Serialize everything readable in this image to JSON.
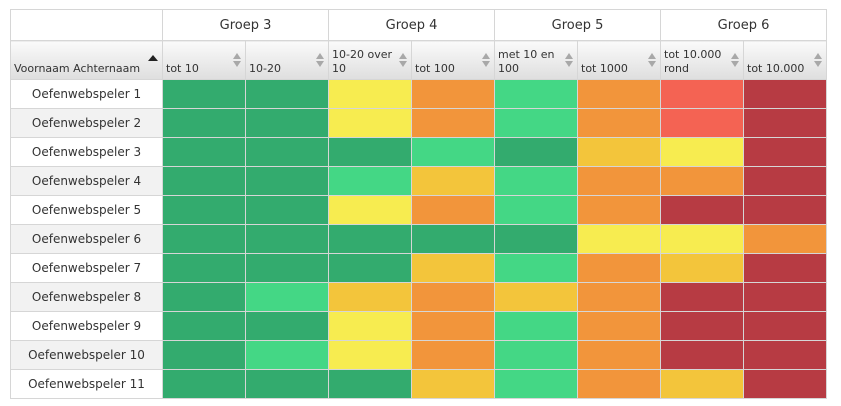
{
  "name_header": "Voornaam Achternaam",
  "groups": [
    "Groep 3",
    "Groep 4",
    "Groep 5",
    "Groep 6"
  ],
  "columns": [
    "tot 10",
    "10-20",
    "10-20 over 10",
    "tot 100",
    "met 10 en 100",
    "tot 1000",
    "tot 10.000 rond",
    "tot 10.000"
  ],
  "levels": {
    "G": "#33ab6e",
    "L": "#44d785",
    "Y": "#f7ec50",
    "A": "#f3c53b",
    "O": "#f2953b",
    "S": "#f46353",
    "R": "#b73b43"
  },
  "players": [
    {
      "name": "Oefenwebspeler 1",
      "cells": [
        "G",
        "G",
        "Y",
        "O",
        "L",
        "O",
        "S",
        "R"
      ]
    },
    {
      "name": "Oefenwebspeler 2",
      "cells": [
        "G",
        "G",
        "Y",
        "O",
        "L",
        "O",
        "S",
        "R"
      ]
    },
    {
      "name": "Oefenwebspeler 3",
      "cells": [
        "G",
        "G",
        "G",
        "L",
        "G",
        "A",
        "Y",
        "R"
      ]
    },
    {
      "name": "Oefenwebspeler 4",
      "cells": [
        "G",
        "G",
        "L",
        "A",
        "L",
        "O",
        "O",
        "R"
      ]
    },
    {
      "name": "Oefenwebspeler 5",
      "cells": [
        "G",
        "G",
        "Y",
        "O",
        "L",
        "O",
        "R",
        "R"
      ]
    },
    {
      "name": "Oefenwebspeler 6",
      "cells": [
        "G",
        "G",
        "G",
        "G",
        "G",
        "Y",
        "Y",
        "O"
      ]
    },
    {
      "name": "Oefenwebspeler 7",
      "cells": [
        "G",
        "G",
        "G",
        "A",
        "L",
        "O",
        "A",
        "R"
      ]
    },
    {
      "name": "Oefenwebspeler 8",
      "cells": [
        "G",
        "L",
        "A",
        "O",
        "A",
        "O",
        "R",
        "R"
      ]
    },
    {
      "name": "Oefenwebspeler 9",
      "cells": [
        "G",
        "G",
        "Y",
        "O",
        "L",
        "O",
        "R",
        "R"
      ]
    },
    {
      "name": "Oefenwebspeler 10",
      "cells": [
        "G",
        "L",
        "Y",
        "O",
        "L",
        "O",
        "R",
        "R"
      ]
    },
    {
      "name": "Oefenwebspeler 11",
      "cells": [
        "G",
        "G",
        "G",
        "A",
        "L",
        "O",
        "A",
        "R"
      ]
    }
  ]
}
